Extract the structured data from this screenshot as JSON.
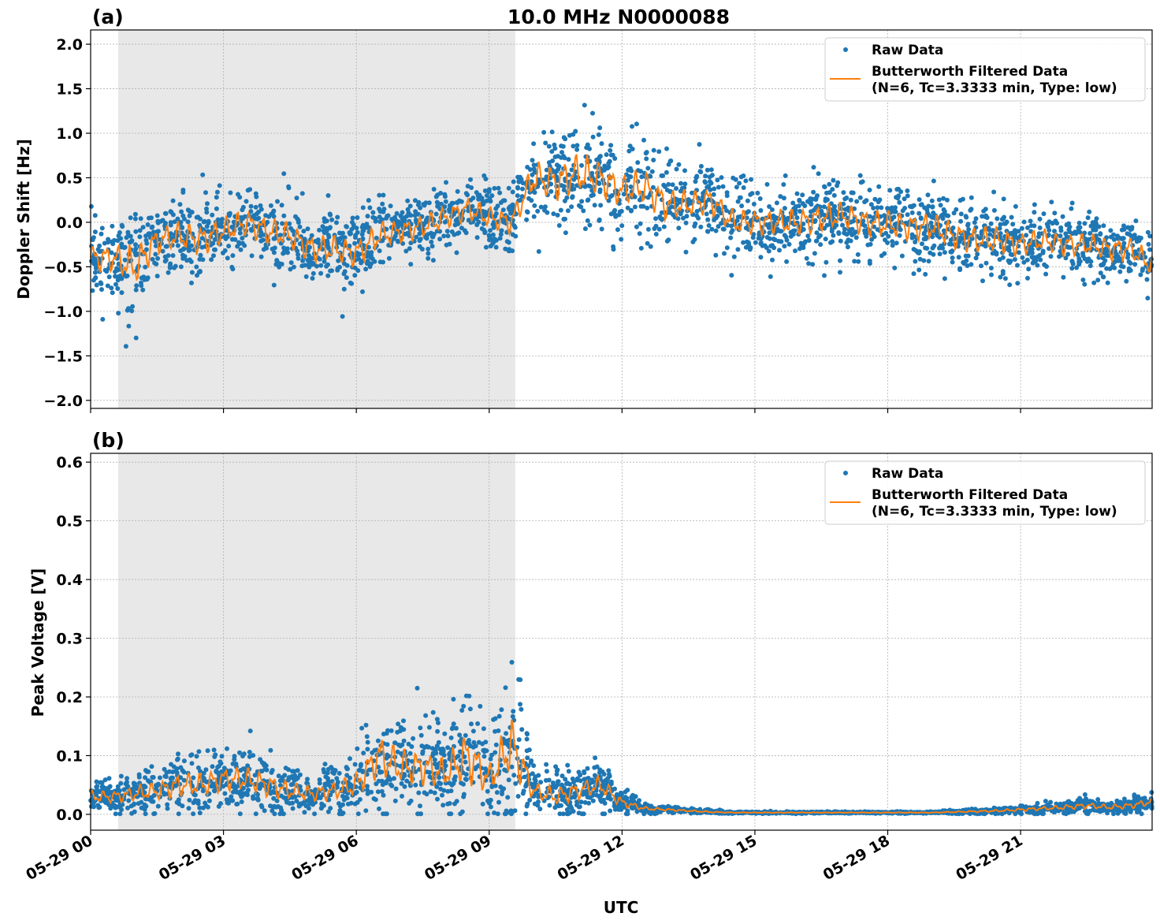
{
  "title": "10.0 MHz N0000088",
  "colors": {
    "raw": "#1f77b4",
    "filtered": "#ff7f0e",
    "shade": "#e8e8e8"
  },
  "chart_data": [
    {
      "type": "scatter+line",
      "panel_label": "(a)",
      "ylabel": "Doppler Shift [Hz]",
      "xlabel": "",
      "ylim": [
        -2.09,
        2.16
      ],
      "yticks": [
        "2.0",
        "1.5",
        "1.0",
        "0.5",
        "0.0",
        "−0.5",
        "−1.0",
        "−1.5",
        "−2.0"
      ],
      "ytick_values": [
        2.0,
        1.5,
        1.0,
        0.5,
        0.0,
        -0.5,
        -1.0,
        -1.5,
        -2.0
      ],
      "grid": true,
      "legend": {
        "placement": "top-right",
        "entries": [
          "Raw Data",
          "Butterworth Filtered Data",
          "(N=6, Tc=3.3333 min, Type: low)"
        ]
      },
      "shaded_interval_hours": [
        0.62,
        9.59
      ],
      "x_hours": [
        0,
        0.5,
        1,
        1.5,
        2,
        2.5,
        3,
        3.5,
        4,
        4.5,
        5,
        5.5,
        6,
        6.5,
        7,
        7.5,
        8,
        8.5,
        9,
        9.5,
        10,
        10.5,
        11,
        11.5,
        12,
        12.5,
        13,
        13.5,
        14,
        14.5,
        15,
        15.5,
        16,
        16.5,
        17,
        17.5,
        18,
        18.5,
        19,
        19.5,
        20,
        20.5,
        21,
        21.5,
        22,
        22.5,
        23,
        23.5,
        24
      ],
      "series": [
        {
          "name": "Butterworth Filtered Data",
          "values": [
            -0.4,
            -0.4,
            -0.5,
            -0.2,
            -0.15,
            -0.2,
            -0.1,
            0.0,
            -0.1,
            -0.15,
            -0.3,
            -0.3,
            -0.35,
            -0.15,
            -0.1,
            -0.05,
            0.05,
            0.15,
            0.05,
            0.0,
            0.5,
            0.45,
            0.55,
            0.5,
            0.35,
            0.4,
            0.2,
            0.2,
            0.25,
            0.0,
            0.0,
            0.0,
            0.0,
            0.05,
            0.08,
            0.0,
            -0.02,
            -0.05,
            -0.05,
            -0.15,
            -0.2,
            -0.2,
            -0.25,
            -0.2,
            -0.25,
            -0.25,
            -0.3,
            -0.3,
            -0.5
          ]
        },
        {
          "name": "Raw Data",
          "spread": [
            0.3,
            0.3,
            0.45,
            0.3,
            0.3,
            0.35,
            0.3,
            0.3,
            0.3,
            0.3,
            0.3,
            0.3,
            0.3,
            0.3,
            0.25,
            0.25,
            0.25,
            0.25,
            0.25,
            0.25,
            0.35,
            0.4,
            0.45,
            0.4,
            0.35,
            0.4,
            0.35,
            0.3,
            0.3,
            0.28,
            0.28,
            0.28,
            0.3,
            0.3,
            0.3,
            0.3,
            0.3,
            0.3,
            0.3,
            0.3,
            0.3,
            0.3,
            0.25,
            0.25,
            0.25,
            0.25,
            0.25,
            0.25,
            0.25
          ]
        }
      ]
    },
    {
      "type": "scatter+line",
      "panel_label": "(b)",
      "ylabel": "Peak Voltage [V]",
      "xlabel": "UTC",
      "ylim": [
        -0.027,
        0.615
      ],
      "yticks": [
        "0.6",
        "0.5",
        "0.4",
        "0.3",
        "0.2",
        "0.1",
        "0.0"
      ],
      "ytick_values": [
        0.6,
        0.5,
        0.4,
        0.3,
        0.2,
        0.1,
        0.0
      ],
      "xticks": [
        "05-29 00",
        "05-29 03",
        "05-29 06",
        "05-29 09",
        "05-29 12",
        "05-29 15",
        "05-29 18",
        "05-29 21"
      ],
      "xtick_hours": [
        0,
        3,
        6,
        9,
        12,
        15,
        18,
        21
      ],
      "xlim_hours": [
        0,
        23.97
      ],
      "grid": true,
      "legend": {
        "placement": "top-right",
        "entries": [
          "Raw Data",
          "Butterworth Filtered Data",
          "(N=6, Tc=3.3333 min, Type: low)"
        ]
      },
      "shaded_interval_hours": [
        0.62,
        9.59
      ],
      "x_hours": [
        0,
        0.5,
        1,
        1.5,
        2,
        2.5,
        3,
        3.5,
        4,
        4.5,
        5,
        5.5,
        6,
        6.5,
        7,
        7.5,
        8,
        8.5,
        9,
        9.5,
        10,
        10.5,
        11,
        11.5,
        12,
        12.5,
        13,
        13.5,
        14,
        14.5,
        15,
        15.5,
        16,
        16.5,
        17,
        17.5,
        18,
        18.5,
        19,
        19.5,
        20,
        20.5,
        21,
        21.5,
        22,
        22.5,
        23,
        23.5,
        24
      ],
      "series": [
        {
          "name": "Butterworth Filtered Data",
          "values": [
            0.03,
            0.03,
            0.035,
            0.04,
            0.05,
            0.05,
            0.06,
            0.06,
            0.05,
            0.04,
            0.035,
            0.04,
            0.05,
            0.1,
            0.08,
            0.08,
            0.07,
            0.1,
            0.06,
            0.12,
            0.04,
            0.03,
            0.04,
            0.05,
            0.02,
            0.01,
            0.008,
            0.006,
            0.004,
            0.003,
            0.003,
            0.003,
            0.003,
            0.003,
            0.003,
            0.003,
            0.003,
            0.003,
            0.003,
            0.004,
            0.005,
            0.006,
            0.008,
            0.01,
            0.012,
            0.015,
            0.012,
            0.015,
            0.022
          ]
        },
        {
          "name": "Raw Data",
          "spread": [
            0.02,
            0.02,
            0.025,
            0.03,
            0.04,
            0.04,
            0.04,
            0.04,
            0.04,
            0.03,
            0.025,
            0.03,
            0.04,
            0.07,
            0.06,
            0.06,
            0.05,
            0.09,
            0.05,
            0.1,
            0.03,
            0.03,
            0.03,
            0.03,
            0.015,
            0.006,
            0.004,
            0.003,
            0.002,
            0.001,
            0.001,
            0.001,
            0.001,
            0.001,
            0.001,
            0.001,
            0.001,
            0.001,
            0.001,
            0.002,
            0.003,
            0.004,
            0.005,
            0.006,
            0.008,
            0.01,
            0.008,
            0.01,
            0.012
          ]
        }
      ]
    }
  ]
}
